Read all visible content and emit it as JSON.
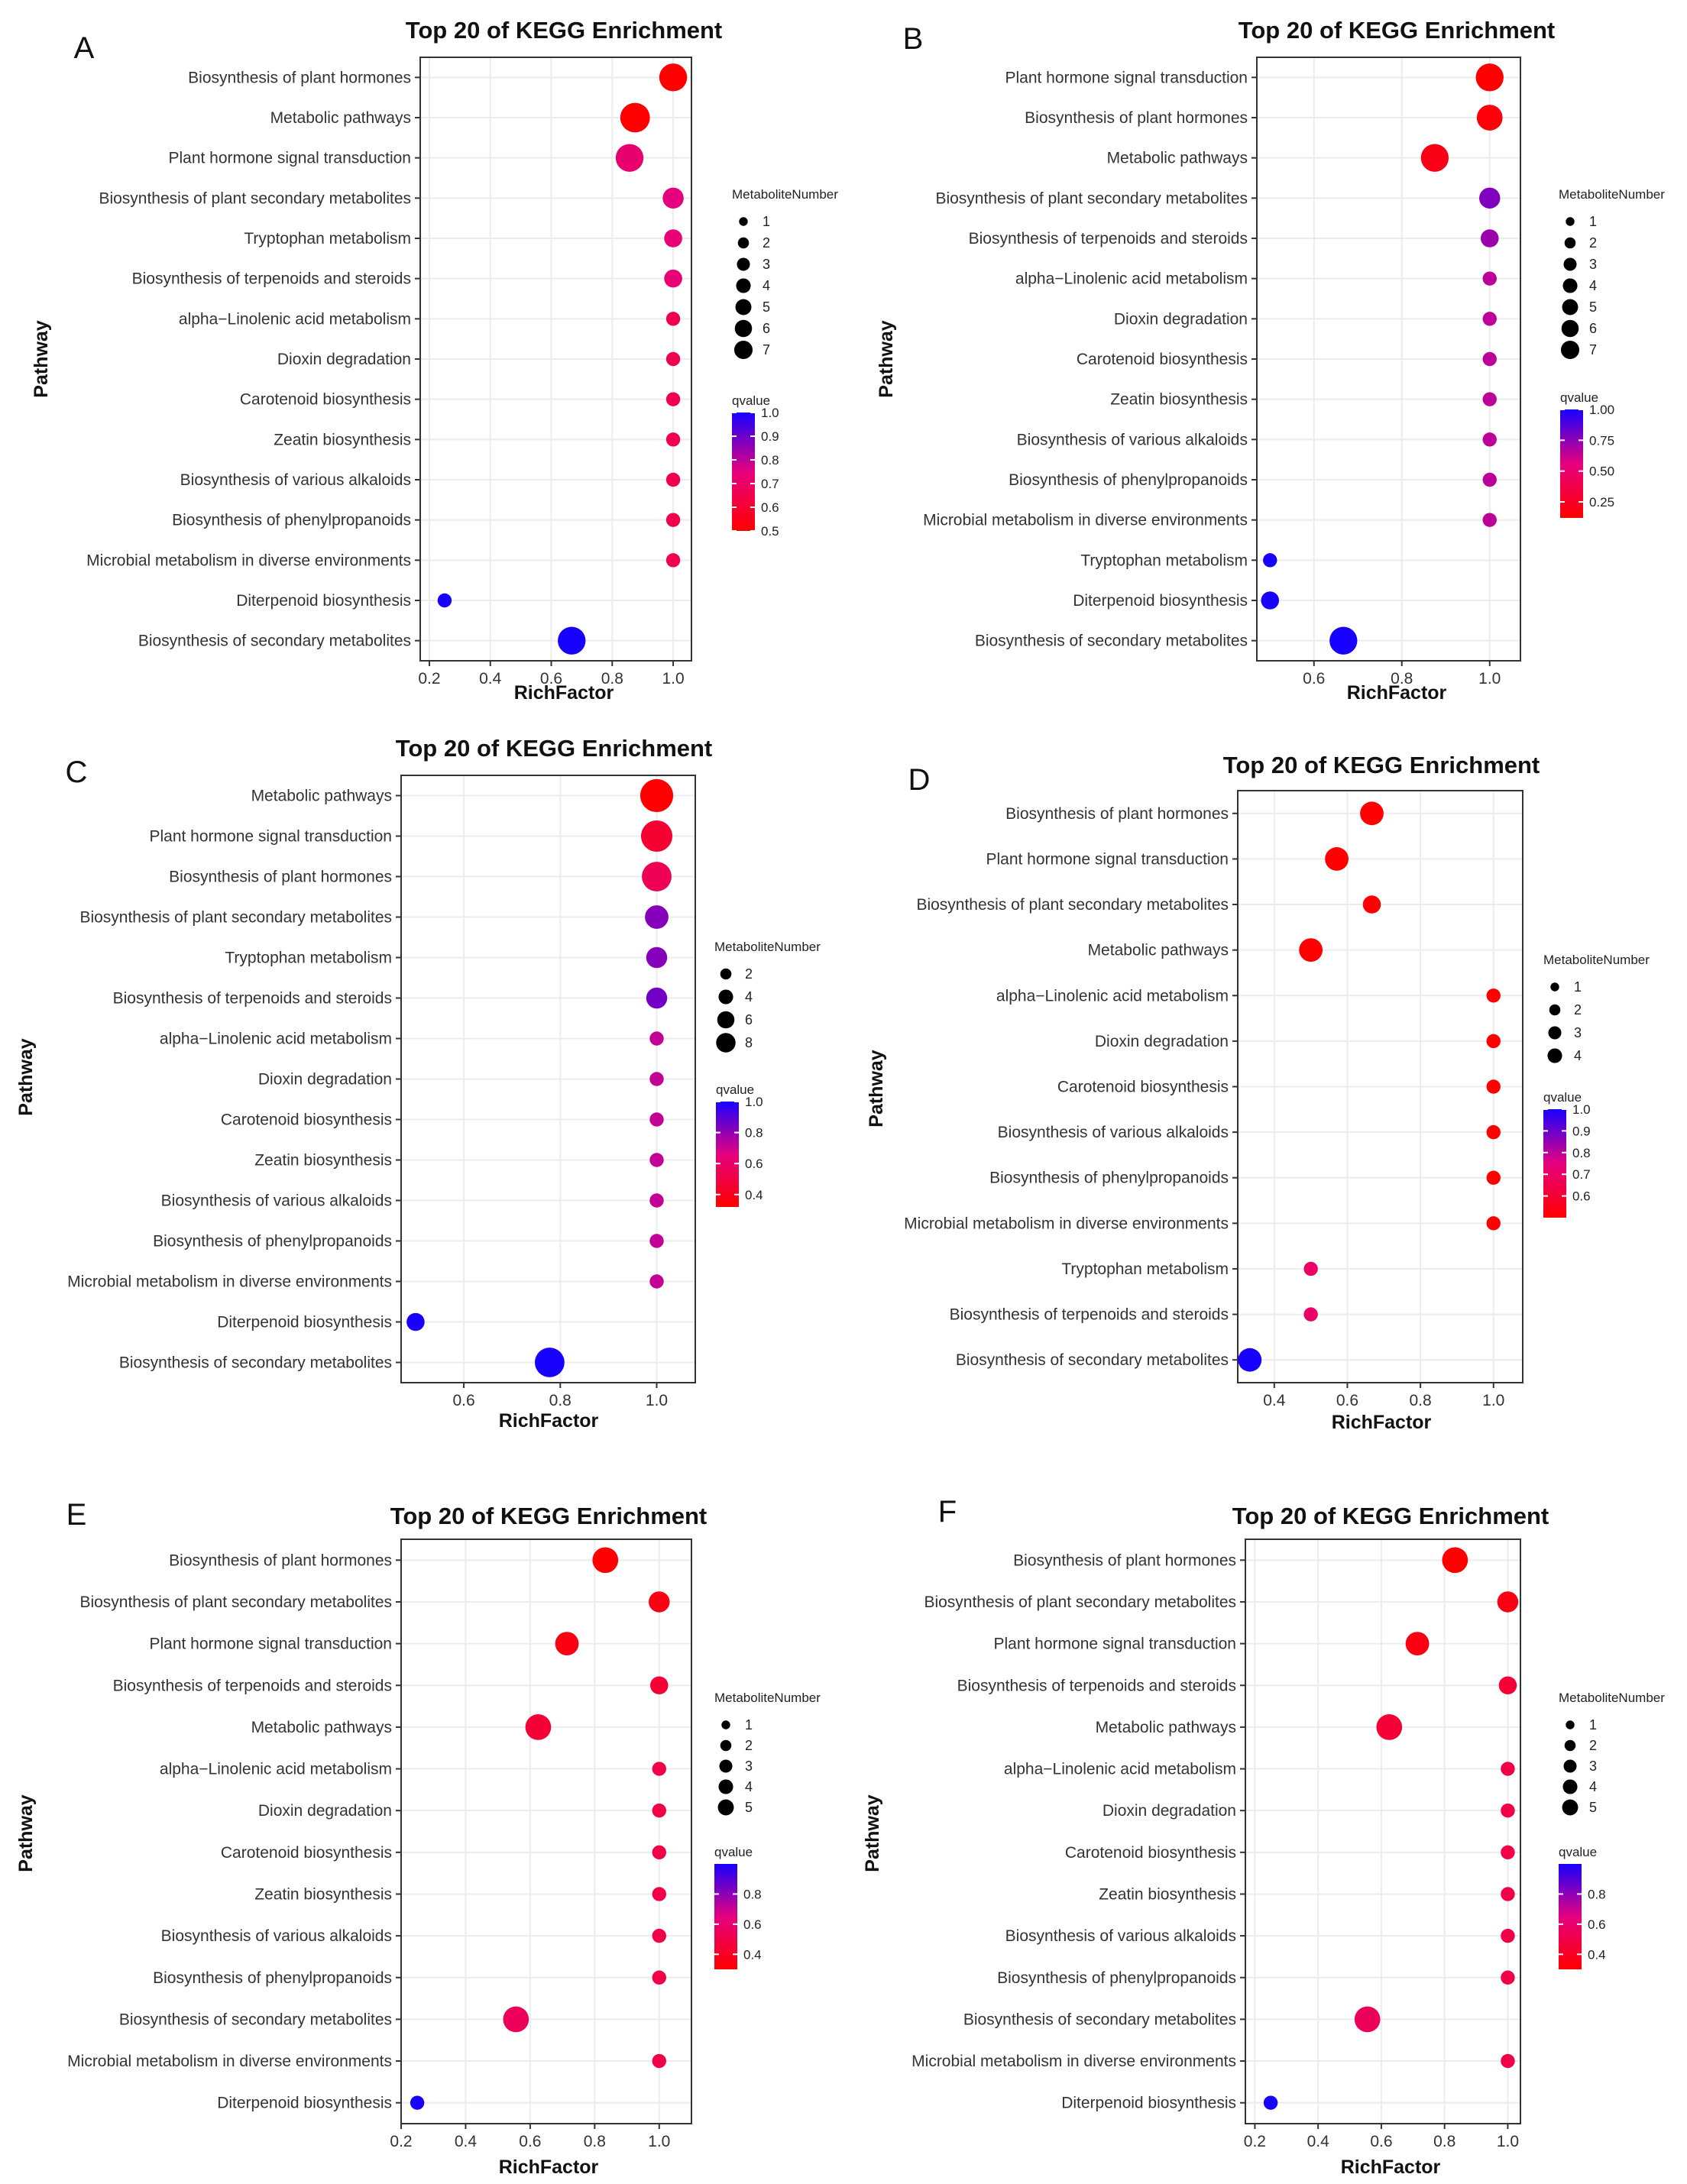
{
  "figure": {
    "colors": {
      "low": "#ff0000",
      "mid": "#e6007e",
      "high": "#1800ff",
      "grid": "#ececec",
      "frame": "#333333",
      "background": "#ffffff"
    }
  },
  "chart_data": [
    {
      "panel": "A",
      "type": "scatter",
      "title": "Top 20 of KEGG Enrichment",
      "xlabel": "RichFactor",
      "ylabel": "Pathway",
      "xlim": [
        0.17,
        1.06
      ],
      "xticks": [
        0.2,
        0.4,
        0.6,
        0.8,
        1.0
      ],
      "xtick_labels": [
        "0.2",
        "0.4",
        "0.6",
        "0.8",
        "1.0"
      ],
      "categories": [
        "Biosynthesis of plant hormones",
        "Metabolic pathways",
        "Plant hormone signal transduction",
        "Biosynthesis of plant secondary metabolites",
        "Tryptophan metabolism",
        "Biosynthesis of terpenoids and steroids",
        "alpha−Linolenic acid metabolism",
        "Dioxin degradation",
        "Carotenoid biosynthesis",
        "Zeatin biosynthesis",
        "Biosynthesis of various alkaloids",
        "Biosynthesis of phenylpropanoids",
        "Microbial metabolism in diverse environments",
        "Diterpenoid biosynthesis",
        "Biosynthesis of secondary metabolites"
      ],
      "rich_factor": [
        1.0,
        0.875,
        0.857,
        1.0,
        1.0,
        1.0,
        1.0,
        1.0,
        1.0,
        1.0,
        1.0,
        1.0,
        1.0,
        0.25,
        0.667
      ],
      "metabolite_number": [
        6,
        7,
        6,
        3,
        2,
        2,
        1,
        1,
        1,
        1,
        1,
        1,
        1,
        1,
        6
      ],
      "qvalue": [
        0.5,
        0.5,
        0.72,
        0.75,
        0.73,
        0.73,
        0.65,
        0.65,
        0.65,
        0.65,
        0.65,
        0.65,
        0.65,
        1.0,
        1.0
      ],
      "size_legend": {
        "title": "MetaboliteNumber",
        "values": [
          1,
          2,
          3,
          4,
          5,
          6,
          7
        ],
        "labels": [
          "1",
          "2",
          "3",
          "4",
          "5",
          "6",
          "7"
        ]
      },
      "color_legend": {
        "title": "qvalue",
        "range": [
          0.5,
          1.0
        ],
        "ticks": [
          1.0,
          0.9,
          0.8,
          0.7,
          0.6,
          0.5
        ],
        "labels": [
          "1.0",
          "0.9",
          "0.8",
          "0.7",
          "0.6",
          "0.5"
        ]
      }
    },
    {
      "panel": "B",
      "type": "scatter",
      "title": "Top 20 of KEGG Enrichment",
      "xlabel": "RichFactor",
      "ylabel": "Pathway",
      "xlim": [
        0.47,
        1.07
      ],
      "xticks": [
        0.6,
        0.8,
        1.0
      ],
      "xtick_labels": [
        "0.6",
        "0.8",
        "1.0"
      ],
      "categories": [
        "Plant hormone signal transduction",
        "Biosynthesis of plant hormones",
        "Metabolic pathways",
        "Biosynthesis of plant secondary metabolites",
        "Biosynthesis of terpenoids and steroids",
        "alpha−Linolenic acid metabolism",
        "Dioxin degradation",
        "Carotenoid biosynthesis",
        "Zeatin biosynthesis",
        "Biosynthesis of various alkaloids",
        "Biosynthesis of phenylpropanoids",
        "Microbial metabolism in diverse environments",
        "Tryptophan metabolism",
        "Diterpenoid biosynthesis",
        "Biosynthesis of secondary metabolites"
      ],
      "rich_factor": [
        1.0,
        1.0,
        0.875,
        1.0,
        1.0,
        1.0,
        1.0,
        1.0,
        1.0,
        1.0,
        1.0,
        1.0,
        0.5,
        0.5,
        0.667
      ],
      "metabolite_number": [
        6,
        5,
        6,
        3,
        2,
        1,
        1,
        1,
        1,
        1,
        1,
        1,
        1,
        2,
        6
      ],
      "qvalue": [
        0.12,
        0.15,
        0.2,
        0.78,
        0.72,
        0.65,
        0.65,
        0.65,
        0.65,
        0.65,
        0.65,
        0.65,
        1.0,
        1.0,
        1.0
      ],
      "size_legend": {
        "title": "MetaboliteNumber",
        "values": [
          1,
          2,
          3,
          4,
          5,
          6,
          7
        ],
        "labels": [
          "1",
          "2",
          "3",
          "4",
          "5",
          "6",
          "7"
        ]
      },
      "color_legend": {
        "title": "qvalue",
        "range": [
          0.12,
          1.0
        ],
        "ticks": [
          1.0,
          0.75,
          0.5,
          0.25
        ],
        "labels": [
          "1.00",
          "0.75",
          "0.50",
          "0.25"
        ]
      }
    },
    {
      "panel": "C",
      "type": "scatter",
      "title": "Top 20 of KEGG Enrichment",
      "xlabel": "RichFactor",
      "ylabel": "Pathway",
      "xlim": [
        0.47,
        1.08
      ],
      "xticks": [
        0.6,
        0.8,
        1.0
      ],
      "xtick_labels": [
        "0.6",
        "0.8",
        "1.0"
      ],
      "categories": [
        "Metabolic pathways",
        "Plant hormone signal transduction",
        "Biosynthesis of plant hormones",
        "Biosynthesis of plant secondary metabolites",
        "Tryptophan metabolism",
        "Biosynthesis of terpenoids and steroids",
        "alpha−Linolenic acid metabolism",
        "Dioxin degradation",
        "Carotenoid biosynthesis",
        "Zeatin biosynthesis",
        "Biosynthesis of various alkaloids",
        "Biosynthesis of phenylpropanoids",
        "Microbial metabolism in diverse environments",
        "Diterpenoid biosynthesis",
        "Biosynthesis of secondary metabolites"
      ],
      "rich_factor": [
        1.0,
        1.0,
        1.0,
        1.0,
        1.0,
        1.0,
        1.0,
        1.0,
        1.0,
        1.0,
        1.0,
        1.0,
        1.0,
        0.5,
        0.778
      ],
      "metabolite_number": [
        9,
        8,
        7,
        4,
        3,
        3,
        1,
        1,
        1,
        1,
        1,
        1,
        1,
        2,
        7
      ],
      "qvalue": [
        0.32,
        0.45,
        0.55,
        0.82,
        0.82,
        0.85,
        0.72,
        0.72,
        0.72,
        0.72,
        0.72,
        0.72,
        0.72,
        1.0,
        1.0
      ],
      "size_legend": {
        "title": "MetaboliteNumber",
        "values": [
          2,
          4,
          6,
          8
        ],
        "labels": [
          "2",
          "4",
          "6",
          "8"
        ]
      },
      "color_legend": {
        "title": "qvalue",
        "range": [
          0.32,
          1.0
        ],
        "ticks": [
          1.0,
          0.8,
          0.6,
          0.4
        ],
        "labels": [
          "1.0",
          "0.8",
          "0.6",
          "0.4"
        ]
      }
    },
    {
      "panel": "D",
      "type": "scatter",
      "title": "Top 20 of KEGG Enrichment",
      "xlabel": "RichFactor",
      "ylabel": "Pathway",
      "xlim": [
        0.3,
        1.08
      ],
      "xticks": [
        0.4,
        0.6,
        0.8,
        1.0
      ],
      "xtick_labels": [
        "0.4",
        "0.6",
        "0.8",
        "1.0"
      ],
      "categories": [
        "Biosynthesis of plant hormones",
        "Plant hormone signal transduction",
        "Biosynthesis of plant secondary metabolites",
        "Metabolic pathways",
        "alpha−Linolenic acid metabolism",
        "Dioxin degradation",
        "Carotenoid biosynthesis",
        "Biosynthesis of various alkaloids",
        "Biosynthesis of phenylpropanoids",
        "Microbial metabolism in diverse environments",
        "Tryptophan metabolism",
        "Biosynthesis of terpenoids and steroids",
        "Biosynthesis of secondary metabolites"
      ],
      "rich_factor": [
        0.667,
        0.571,
        0.667,
        0.5,
        1.0,
        1.0,
        1.0,
        1.0,
        1.0,
        1.0,
        0.5,
        0.5,
        0.333
      ],
      "metabolite_number": [
        4,
        4,
        2,
        4,
        1,
        1,
        1,
        1,
        1,
        1,
        1,
        1,
        4
      ],
      "qvalue": [
        0.5,
        0.5,
        0.5,
        0.5,
        0.5,
        0.5,
        0.5,
        0.5,
        0.5,
        0.5,
        0.7,
        0.7,
        1.0
      ],
      "size_legend": {
        "title": "MetaboliteNumber",
        "values": [
          1,
          2,
          3,
          4
        ],
        "labels": [
          "1",
          "2",
          "3",
          "4"
        ]
      },
      "color_legend": {
        "title": "qvalue",
        "range": [
          0.5,
          1.0
        ],
        "ticks": [
          1.0,
          0.9,
          0.8,
          0.7,
          0.6
        ],
        "labels": [
          "1.0",
          "0.9",
          "0.8",
          "0.7",
          "0.6"
        ]
      }
    },
    {
      "panel": "E",
      "type": "scatter",
      "title": "Top 20 of KEGG Enrichment",
      "xlabel": "RichFactor",
      "ylabel": "Pathway",
      "xlim": [
        0.2,
        1.1
      ],
      "xticks": [
        0.2,
        0.4,
        0.6,
        0.8,
        1.0
      ],
      "xtick_labels": [
        "0.2",
        "0.4",
        "0.6",
        "0.8",
        "1.0"
      ],
      "categories": [
        "Biosynthesis of plant hormones",
        "Biosynthesis of plant secondary metabolites",
        "Plant hormone signal transduction",
        "Biosynthesis of terpenoids and steroids",
        "Metabolic pathways",
        "alpha−Linolenic acid metabolism",
        "Dioxin degradation",
        "Carotenoid biosynthesis",
        "Zeatin biosynthesis",
        "Biosynthesis of various alkaloids",
        "Biosynthesis of phenylpropanoids",
        "Biosynthesis of secondary metabolites",
        "Microbial metabolism in diverse environments",
        "Diterpenoid biosynthesis"
      ],
      "rich_factor": [
        0.833,
        1.0,
        0.714,
        1.0,
        0.625,
        1.0,
        1.0,
        1.0,
        1.0,
        1.0,
        1.0,
        0.556,
        1.0,
        0.25
      ],
      "metabolite_number": [
        5,
        3,
        4,
        2,
        5,
        1,
        1,
        1,
        1,
        1,
        1,
        5,
        1,
        1
      ],
      "qvalue": [
        0.3,
        0.35,
        0.35,
        0.45,
        0.45,
        0.5,
        0.5,
        0.5,
        0.5,
        0.5,
        0.5,
        0.55,
        0.5,
        1.0
      ],
      "size_legend": {
        "title": "MetaboliteNumber",
        "values": [
          1,
          2,
          3,
          4,
          5
        ],
        "labels": [
          "1",
          "2",
          "3",
          "4",
          "5"
        ]
      },
      "color_legend": {
        "title": "qvalue",
        "range": [
          0.3,
          1.0
        ],
        "ticks": [
          0.8,
          0.6,
          0.4
        ],
        "labels": [
          "0.8",
          "0.6",
          "0.4"
        ]
      }
    },
    {
      "panel": "F",
      "type": "scatter",
      "title": "Top 20 of KEGG Enrichment",
      "xlabel": "RichFactor",
      "ylabel": "Pathway",
      "xlim": [
        0.17,
        1.04
      ],
      "xticks": [
        0.2,
        0.4,
        0.6,
        0.8,
        1.0
      ],
      "xtick_labels": [
        "0.2",
        "0.4",
        "0.6",
        "0.8",
        "1.0"
      ],
      "categories": [
        "Biosynthesis of plant hormones",
        "Biosynthesis of plant secondary metabolites",
        "Plant hormone signal transduction",
        "Biosynthesis of terpenoids and steroids",
        "Metabolic pathways",
        "alpha−Linolenic acid metabolism",
        "Dioxin degradation",
        "Carotenoid biosynthesis",
        "Zeatin biosynthesis",
        "Biosynthesis of various alkaloids",
        "Biosynthesis of phenylpropanoids",
        "Biosynthesis of secondary metabolites",
        "Microbial metabolism in diverse environments",
        "Diterpenoid biosynthesis"
      ],
      "rich_factor": [
        0.833,
        1.0,
        0.714,
        1.0,
        0.625,
        1.0,
        1.0,
        1.0,
        1.0,
        1.0,
        1.0,
        0.556,
        1.0,
        0.25
      ],
      "metabolite_number": [
        5,
        3,
        4,
        2,
        5,
        1,
        1,
        1,
        1,
        1,
        1,
        5,
        1,
        1
      ],
      "qvalue": [
        0.3,
        0.35,
        0.35,
        0.45,
        0.45,
        0.5,
        0.5,
        0.5,
        0.5,
        0.5,
        0.5,
        0.55,
        0.5,
        1.0
      ],
      "size_legend": {
        "title": "MetaboliteNumber",
        "values": [
          1,
          2,
          3,
          4,
          5
        ],
        "labels": [
          "1",
          "2",
          "3",
          "4",
          "5"
        ]
      },
      "color_legend": {
        "title": "qvalue",
        "range": [
          0.3,
          1.0
        ],
        "ticks": [
          0.8,
          0.6,
          0.4
        ],
        "labels": [
          "0.8",
          "0.6",
          "0.4"
        ]
      }
    }
  ]
}
